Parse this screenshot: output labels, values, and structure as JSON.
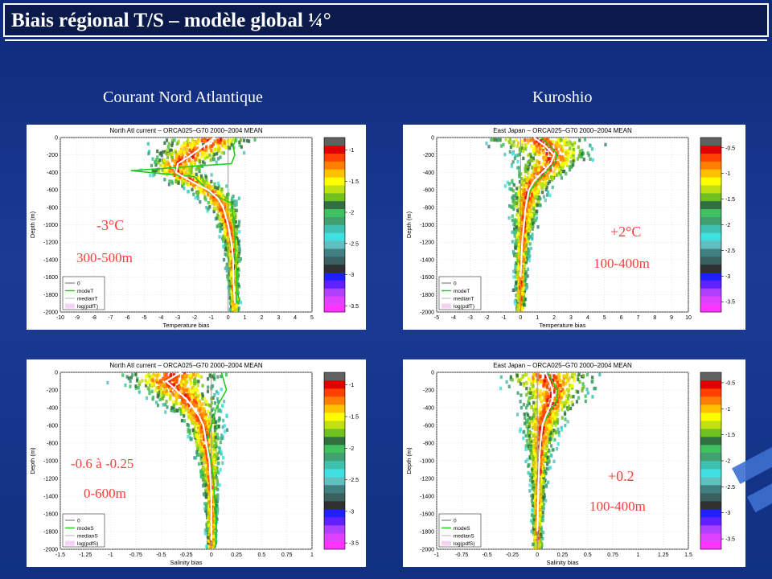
{
  "slide": {
    "title": "Biais régional T/S – modèle global ¼°",
    "columns": [
      "Courant Nord Atlantique",
      "Kuroshio"
    ]
  },
  "colors": {
    "zero_line": "#9a9a9a",
    "mode_line": "#22cc22",
    "median_line": "#ffffff",
    "annotation": "#ff3b3b",
    "colorbar": [
      "#ff33ff",
      "#e040ff",
      "#b040ff",
      "#6020ff",
      "#2020ff",
      "#303030",
      "#3a6060",
      "#408080",
      "#60c0c0",
      "#40e0e0",
      "#40c0b0",
      "#40a070",
      "#40c060",
      "#307040",
      "#70c020",
      "#c0e010",
      "#ffff00",
      "#ffc000",
      "#ff8000",
      "#ff4000",
      "#e00000",
      "#606060"
    ]
  },
  "chart_data": [
    {
      "type": "heatmap",
      "title": "North Atl current – ORCA025–G70 2000–2004 MEAN",
      "xlabel": "Temperature bias",
      "ylabel": "Depth (m)",
      "xlim": [
        -10,
        5
      ],
      "ylim": [
        -2000,
        0
      ],
      "xticks": [
        "-10",
        "-9",
        "-8",
        "-7",
        "-6",
        "-5",
        "-4",
        "-3",
        "-2",
        "-1",
        "0",
        "1",
        "2",
        "3",
        "4",
        "5"
      ],
      "yticks": [
        "0",
        "-200",
        "-400",
        "-600",
        "-800",
        "-1000",
        "-1200",
        "-1400",
        "-1600",
        "-1800",
        "-2000"
      ],
      "colorbar_ticks": [
        "-1",
        "-1.5",
        "-2",
        "-2.5",
        "-3",
        "-3.5"
      ],
      "colorbar_range": [
        -3.6,
        -0.8
      ],
      "legend": [
        "0",
        "modeT",
        "medianT",
        "log(pdfT)"
      ],
      "legend_position": "bottom-left",
      "annotations": [
        "-3°C",
        "300-500m"
      ],
      "series": [
        {
          "name": "modeT",
          "x": [
            0.5,
            0.3,
            0.4,
            0.2,
            -5.8,
            -2.0,
            -1.5,
            -1.0,
            0.2,
            0.3,
            0.4,
            0.4,
            0.5,
            0.5,
            0.5
          ],
          "y": [
            0,
            -100,
            -200,
            -300,
            -380,
            -450,
            -550,
            -650,
            -750,
            -900,
            -1100,
            -1300,
            -1500,
            -1700,
            -1900
          ]
        },
        {
          "name": "medianT",
          "x": [
            -0.8,
            -1.5,
            -2.2,
            -3.0,
            -3.1,
            -2.2,
            -1.2,
            -0.6,
            -0.3,
            0.0,
            0.2,
            0.3,
            0.3,
            0.4
          ],
          "y": [
            0,
            -100,
            -200,
            -300,
            -400,
            -500,
            -600,
            -700,
            -800,
            -1000,
            -1200,
            -1400,
            -1600,
            -1900
          ]
        }
      ]
    },
    {
      "type": "heatmap",
      "title": "East Japan – ORCA025–G70 2000–2004 MEAN",
      "xlabel": "Temperature bias",
      "ylabel": "Depth (m)",
      "xlim": [
        -5,
        10
      ],
      "ylim": [
        -2000,
        0
      ],
      "xticks": [
        "-5",
        "-4",
        "-3",
        "-2",
        "-1",
        "0",
        "1",
        "2",
        "3",
        "4",
        "5",
        "6",
        "7",
        "8",
        "9",
        "10"
      ],
      "yticks": [
        "0",
        "-200",
        "-400",
        "-600",
        "-800",
        "-1000",
        "-1200",
        "-1400",
        "-1600",
        "-1800",
        "-2000"
      ],
      "colorbar_ticks": [
        "-0.5",
        "-1",
        "-1.5",
        "-2",
        "-2.5",
        "-3",
        "-3.5"
      ],
      "colorbar_range": [
        -3.7,
        -0.3
      ],
      "legend": [
        "0",
        "modeT",
        "medianT",
        "log(pdfT)"
      ],
      "legend_position": "bottom-left",
      "annotations": [
        "+2°C",
        "100-400m"
      ],
      "series": [
        {
          "name": "modeT",
          "x": [
            1.2,
            1.8,
            2.2,
            2.0,
            1.5,
            1.0,
            0.6,
            0.3,
            0.2,
            0.1,
            0.0
          ],
          "y": [
            0,
            -100,
            -200,
            -300,
            -400,
            -500,
            -600,
            -800,
            -1000,
            -1200,
            -1600
          ]
        },
        {
          "name": "medianT",
          "x": [
            0.8,
            1.5,
            2.0,
            1.8,
            1.3,
            0.8,
            0.5,
            0.3,
            0.2,
            0.1,
            0.0
          ],
          "y": [
            0,
            -100,
            -200,
            -300,
            -400,
            -500,
            -600,
            -800,
            -1000,
            -1200,
            -1600
          ]
        }
      ]
    },
    {
      "type": "heatmap",
      "title": "North Atl current – ORCA025–G70 2000–2004 MEAN",
      "xlabel": "Salinity bias",
      "ylabel": "Depth (m)",
      "xlim": [
        -1.5,
        1
      ],
      "ylim": [
        -2000,
        0
      ],
      "xticks": [
        "-1.5",
        "-1.25",
        "-1",
        "-0.75",
        "-0.5",
        "-0.25",
        "0",
        "0.25",
        "0.5",
        "0.75",
        "1"
      ],
      "yticks": [
        "0",
        "-200",
        "-400",
        "-600",
        "-800",
        "-1000",
        "-1200",
        "-1400",
        "-1600",
        "-1800",
        "-2000"
      ],
      "colorbar_ticks": [
        "-1",
        "-1.5",
        "-2",
        "-2.5",
        "-3",
        "-3.5"
      ],
      "colorbar_range": [
        -3.6,
        -0.8
      ],
      "legend": [
        "0",
        "modeS",
        "medianS",
        "log(pdfS)"
      ],
      "legend_position": "bottom-left",
      "annotations": [
        "-0.6 à -0.25",
        "0-600m"
      ],
      "series": [
        {
          "name": "modeS",
          "x": [
            0.1,
            0.15,
            0.05,
            0.0,
            -0.05,
            0.0,
            0.02,
            0.03,
            0.05,
            0.05,
            0.05
          ],
          "y": [
            0,
            -200,
            -400,
            -600,
            -800,
            -1000,
            -1200,
            -1400,
            -1600,
            -1800,
            -1950
          ]
        },
        {
          "name": "medianS",
          "x": [
            -0.3,
            -0.45,
            -0.35,
            -0.25,
            -0.18,
            -0.12,
            -0.08,
            -0.05,
            -0.02,
            0.0,
            0.0
          ],
          "y": [
            0,
            -100,
            -200,
            -300,
            -400,
            -500,
            -600,
            -800,
            -1000,
            -1400,
            -1900
          ]
        }
      ]
    },
    {
      "type": "heatmap",
      "title": "East Japan – ORCA025–G70 2000–2004 MEAN",
      "xlabel": "Salinity bias",
      "ylabel": "Depth (m)",
      "xlim": [
        -1,
        1.5
      ],
      "ylim": [
        -2000,
        0
      ],
      "xticks": [
        "-1",
        "-0.75",
        "-0.5",
        "-0.25",
        "0",
        "0.25",
        "0.5",
        "0.75",
        "1",
        "1.25",
        "1.5"
      ],
      "yticks": [
        "0",
        "-200",
        "-400",
        "-600",
        "-800",
        "-1000",
        "-1200",
        "-1400",
        "-1600",
        "-1800",
        "-2000"
      ],
      "colorbar_ticks": [
        "-0.5",
        "-1",
        "-1.5",
        "-2",
        "-2.5",
        "-3",
        "-3.5"
      ],
      "colorbar_range": [
        -3.7,
        -0.3
      ],
      "legend": [
        "0",
        "modeS",
        "medianS",
        "log(pdfS)"
      ],
      "legend_position": "bottom-left",
      "annotations": [
        "+0.2",
        "100-400m"
      ],
      "series": [
        {
          "name": "modeS",
          "x": [
            0.1,
            0.15,
            0.2,
            0.2,
            0.15,
            0.1,
            0.05,
            0.03,
            0.02,
            0.01,
            0.0
          ],
          "y": [
            0,
            -100,
            -200,
            -300,
            -400,
            -500,
            -600,
            -800,
            -1000,
            -1300,
            -1800
          ]
        },
        {
          "name": "medianS",
          "x": [
            0.08,
            0.12,
            0.15,
            0.15,
            0.12,
            0.08,
            0.05,
            0.03,
            0.02,
            0.01,
            0.0
          ],
          "y": [
            0,
            -100,
            -200,
            -300,
            -400,
            -500,
            -600,
            -800,
            -1000,
            -1300,
            -1800
          ]
        }
      ]
    }
  ]
}
